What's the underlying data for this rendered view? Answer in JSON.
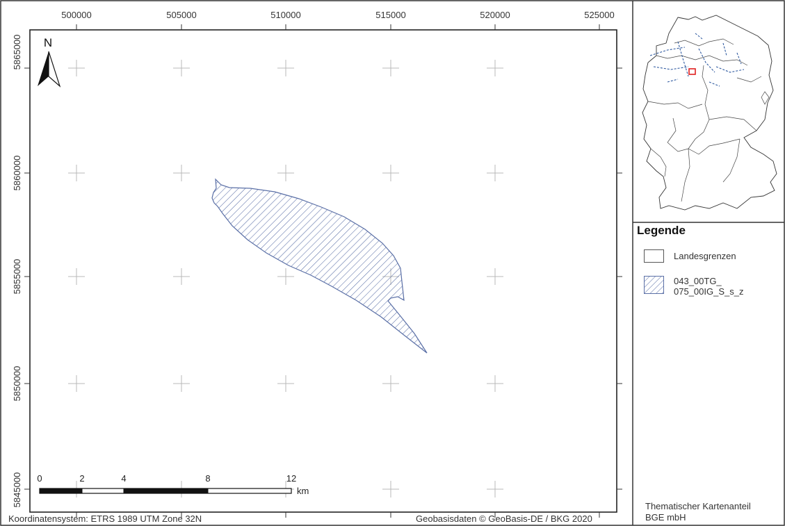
{
  "map": {
    "north_label": "N",
    "x_ticks": [
      "500000",
      "505000",
      "510000",
      "515000",
      "520000",
      "525000"
    ],
    "y_ticks": [
      "5865000",
      "5860000",
      "5855000",
      "5850000",
      "5845000"
    ],
    "scale_bar": {
      "labels": [
        "0",
        "2",
        "4",
        "8",
        "12"
      ],
      "unit": "km"
    },
    "feature_color": "#5a6fa6"
  },
  "legend": {
    "title": "Legende",
    "items": [
      {
        "label": "Landesgrenzen"
      },
      {
        "label_line1": "043_00TG_",
        "label_line2": "075_00IG_S_s_z"
      }
    ]
  },
  "footer": {
    "coordinate_system": "Koordinatensystem: ETRS 1989 UTM Zone 32N",
    "basemap_credit": "Geobasisdaten © GeoBasis-DE / BKG 2020",
    "thematic_credit_line1": "Thematischer Kartenanteil",
    "thematic_credit_line2": "BGE mbH"
  }
}
